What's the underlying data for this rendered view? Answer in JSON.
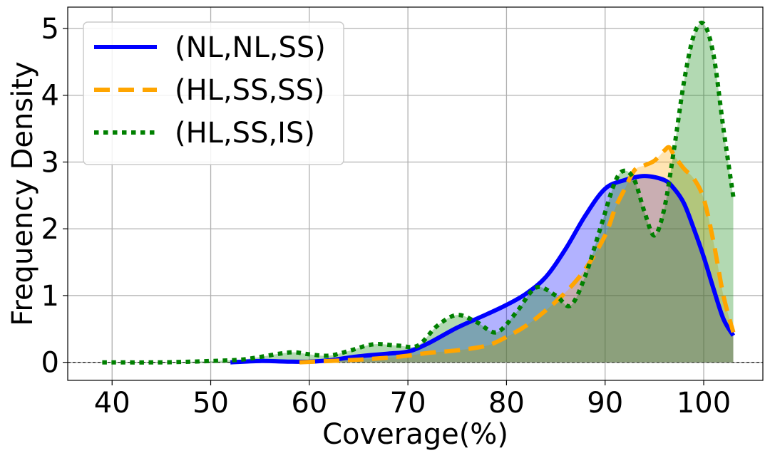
{
  "chart_data": {
    "type": "area",
    "xlabel": "Coverage(%)",
    "ylabel": "Frequency Density",
    "xlim": [
      35.5,
      106
    ],
    "ylim": [
      -0.27,
      5.32
    ],
    "xticks": [
      40,
      50,
      60,
      70,
      80,
      90,
      100
    ],
    "yticks": [
      0,
      1,
      2,
      3,
      4,
      5
    ],
    "grid": true,
    "zero_line": true,
    "legend_position": "top-left",
    "series": [
      {
        "name": "(NL,NL,SS)",
        "color": "#0000ff",
        "line_style": "solid",
        "fill_color": "#0000ff",
        "x": [
          52,
          55,
          58,
          60,
          62,
          65,
          68,
          70,
          72,
          75,
          78,
          80,
          82,
          84,
          86,
          88,
          90,
          92,
          94,
          96,
          97,
          98,
          99,
          100,
          101,
          102,
          103
        ],
        "y": [
          0.0,
          0.02,
          0.01,
          0.01,
          0.03,
          0.09,
          0.13,
          0.16,
          0.28,
          0.52,
          0.72,
          0.86,
          1.03,
          1.28,
          1.7,
          2.2,
          2.6,
          2.73,
          2.79,
          2.73,
          2.6,
          2.38,
          2.0,
          1.58,
          1.1,
          0.65,
          0.4
        ]
      },
      {
        "name": "(HL,SS,SS)",
        "color": "#ffa500",
        "line_style": "dashed",
        "fill_color": "#ffa500",
        "x": [
          59,
          62,
          65,
          68,
          70,
          72,
          75,
          78,
          80,
          82,
          84,
          86,
          88,
          90,
          91,
          92,
          93,
          94,
          95,
          96,
          96.5,
          97,
          98,
          99,
          100,
          101,
          102,
          103
        ],
        "y": [
          0.0,
          0.02,
          0.04,
          0.07,
          0.1,
          0.14,
          0.18,
          0.25,
          0.38,
          0.55,
          0.78,
          1.05,
          1.4,
          1.9,
          2.3,
          2.6,
          2.88,
          2.95,
          3.02,
          3.17,
          3.22,
          3.1,
          2.9,
          2.75,
          2.45,
          1.8,
          1.0,
          0.45
        ]
      },
      {
        "name": "(HL,SS,IS)",
        "color": "#008000",
        "line_style": "dotted",
        "fill_color": "#008000",
        "x": [
          39,
          45,
          50,
          53,
          55,
          57,
          58.5,
          60,
          62,
          64,
          66.5,
          69,
          71,
          73,
          75,
          77,
          79,
          81,
          83,
          85,
          86.5,
          88,
          89.5,
          91,
          92,
          93,
          94,
          95,
          96,
          97,
          98,
          99,
          100,
          101,
          102,
          103
        ],
        "y": [
          0.0,
          0.0,
          0.02,
          0.04,
          0.08,
          0.13,
          0.15,
          0.12,
          0.1,
          0.17,
          0.27,
          0.25,
          0.25,
          0.55,
          0.71,
          0.6,
          0.45,
          0.75,
          1.12,
          1.0,
          0.85,
          1.3,
          2.0,
          2.7,
          2.87,
          2.72,
          2.25,
          1.9,
          2.3,
          3.2,
          4.2,
          4.9,
          5.07,
          4.6,
          3.5,
          2.48
        ]
      }
    ]
  }
}
